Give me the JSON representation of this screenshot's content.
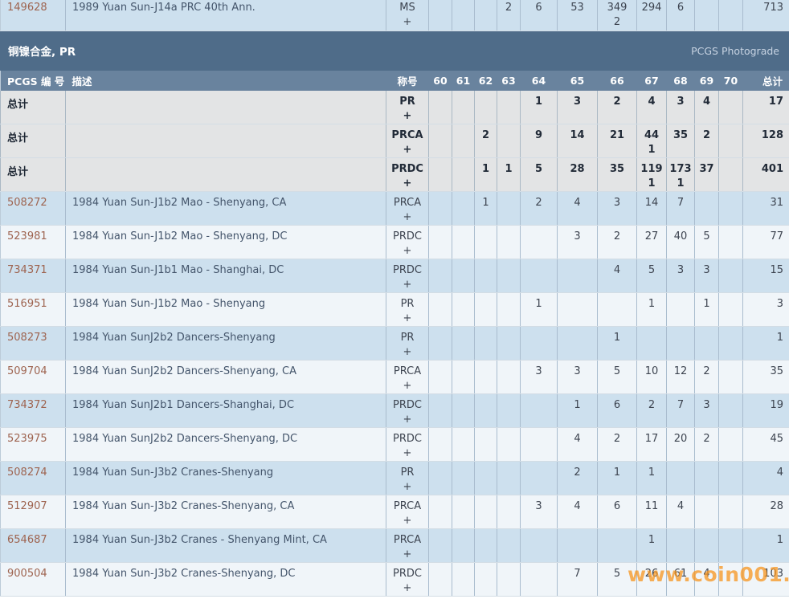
{
  "page": {
    "band_title": "铜镍合金, PR",
    "photograde_link": "PCGS Photograde",
    "watermark": "www.coin001.com"
  },
  "colors": {
    "band_bg": "#4f6c89",
    "header_bg": "#69839e",
    "row_blue": "#cde0ee",
    "row_light": "#f0f5f9",
    "row_gray": "#e3e4e5",
    "pcgs_link": "#9e6450",
    "watermark_orange": "#f7941d"
  },
  "columns": {
    "pcgs": "PCGS 编 号",
    "desc": "描述",
    "designation": "称号",
    "grades": [
      "60",
      "61",
      "62",
      "63",
      "64",
      "65",
      "66",
      "67",
      "68",
      "69",
      "70"
    ],
    "total": "总计"
  },
  "pre_rows": [
    {
      "kind": "data",
      "shade": "blue",
      "top": true,
      "id": "149628",
      "desc": "1989 Yuan Sun-J14a PRC 40th Ann.",
      "designation": "MS",
      "plus": "+",
      "counts": [
        "",
        "",
        "",
        "2",
        "6",
        "53",
        "349",
        "294",
        "6",
        "",
        ""
      ],
      "plus_counts": [
        "",
        "",
        "",
        "",
        "",
        "",
        "2",
        "",
        "",
        "",
        ""
      ],
      "total": "713"
    }
  ],
  "rows": [
    {
      "kind": "total",
      "shade": "gray",
      "label": "总计",
      "desc": "",
      "designation": "PR",
      "plus": "+",
      "counts": [
        "",
        "",
        "",
        "",
        "1",
        "3",
        "2",
        "4",
        "3",
        "4",
        ""
      ],
      "plus_counts": [
        "",
        "",
        "",
        "",
        "",
        "",
        "",
        "",
        "",
        "",
        ""
      ],
      "total": "17"
    },
    {
      "kind": "total",
      "shade": "gray",
      "label": "总计",
      "desc": "",
      "designation": "PRCA",
      "plus": "+",
      "counts": [
        "",
        "",
        "2",
        "",
        "9",
        "14",
        "21",
        "44",
        "35",
        "2",
        ""
      ],
      "plus_counts": [
        "",
        "",
        "",
        "",
        "",
        "",
        "",
        "1",
        "",
        "",
        ""
      ],
      "total": "128"
    },
    {
      "kind": "total",
      "shade": "gray",
      "label": "总计",
      "desc": "",
      "designation": "PRDC",
      "plus": "+",
      "counts": [
        "",
        "",
        "1",
        "1",
        "5",
        "28",
        "35",
        "119",
        "173",
        "37",
        ""
      ],
      "plus_counts": [
        "",
        "",
        "",
        "",
        "",
        "",
        "",
        "1",
        "1",
        "",
        ""
      ],
      "total": "401"
    },
    {
      "kind": "data",
      "shade": "blue",
      "id": "508272",
      "desc": "1984 Yuan Sun-J1b2 Mao - Shenyang, CA",
      "designation": "PRCA",
      "plus": "+",
      "counts": [
        "",
        "",
        "1",
        "",
        "2",
        "4",
        "3",
        "14",
        "7",
        "",
        ""
      ],
      "plus_counts": [
        "",
        "",
        "",
        "",
        "",
        "",
        "",
        "",
        "",
        "",
        ""
      ],
      "total": "31"
    },
    {
      "kind": "data",
      "shade": "light",
      "id": "523981",
      "desc": "1984 Yuan Sun-J1b2 Mao - Shenyang, DC",
      "designation": "PRDC",
      "plus": "+",
      "counts": [
        "",
        "",
        "",
        "",
        "",
        "3",
        "2",
        "27",
        "40",
        "5",
        ""
      ],
      "plus_counts": [
        "",
        "",
        "",
        "",
        "",
        "",
        "",
        "",
        "",
        "",
        ""
      ],
      "total": "77"
    },
    {
      "kind": "data",
      "shade": "blue",
      "id": "734371",
      "desc": "1984 Yuan Sun-J1b1 Mao - Shanghai, DC",
      "designation": "PRDC",
      "plus": "+",
      "counts": [
        "",
        "",
        "",
        "",
        "",
        "",
        "4",
        "5",
        "3",
        "3",
        ""
      ],
      "plus_counts": [
        "",
        "",
        "",
        "",
        "",
        "",
        "",
        "",
        "",
        "",
        ""
      ],
      "total": "15"
    },
    {
      "kind": "data",
      "shade": "light",
      "id": "516951",
      "desc": "1984 Yuan Sun-J1b2 Mao - Shenyang",
      "designation": "PR",
      "plus": "+",
      "counts": [
        "",
        "",
        "",
        "",
        "1",
        "",
        "",
        "1",
        "",
        "1",
        ""
      ],
      "plus_counts": [
        "",
        "",
        "",
        "",
        "",
        "",
        "",
        "",
        "",
        "",
        ""
      ],
      "total": "3"
    },
    {
      "kind": "data",
      "shade": "blue",
      "id": "508273",
      "desc": "1984 Yuan SunJ2b2 Dancers-Shenyang",
      "designation": "PR",
      "plus": "+",
      "counts": [
        "",
        "",
        "",
        "",
        "",
        "",
        "1",
        "",
        "",
        "",
        ""
      ],
      "plus_counts": [
        "",
        "",
        "",
        "",
        "",
        "",
        "",
        "",
        "",
        "",
        ""
      ],
      "total": "1"
    },
    {
      "kind": "data",
      "shade": "light",
      "id": "509704",
      "desc": "1984 Yuan SunJ2b2 Dancers-Shenyang, CA",
      "designation": "PRCA",
      "plus": "+",
      "counts": [
        "",
        "",
        "",
        "",
        "3",
        "3",
        "5",
        "10",
        "12",
        "2",
        ""
      ],
      "plus_counts": [
        "",
        "",
        "",
        "",
        "",
        "",
        "",
        "",
        "",
        "",
        ""
      ],
      "total": "35"
    },
    {
      "kind": "data",
      "shade": "blue",
      "id": "734372",
      "desc": "1984 Yuan SunJ2b1 Dancers-Shanghai, DC",
      "designation": "PRDC",
      "plus": "+",
      "counts": [
        "",
        "",
        "",
        "",
        "",
        "1",
        "6",
        "2",
        "7",
        "3",
        ""
      ],
      "plus_counts": [
        "",
        "",
        "",
        "",
        "",
        "",
        "",
        "",
        "",
        "",
        ""
      ],
      "total": "19"
    },
    {
      "kind": "data",
      "shade": "light",
      "id": "523975",
      "desc": "1984 Yuan SunJ2b2 Dancers-Shenyang, DC",
      "designation": "PRDC",
      "plus": "+",
      "counts": [
        "",
        "",
        "",
        "",
        "",
        "4",
        "2",
        "17",
        "20",
        "2",
        ""
      ],
      "plus_counts": [
        "",
        "",
        "",
        "",
        "",
        "",
        "",
        "",
        "",
        "",
        ""
      ],
      "total": "45"
    },
    {
      "kind": "data",
      "shade": "blue",
      "id": "508274",
      "desc": "1984 Yuan Sun-J3b2 Cranes-Shenyang",
      "designation": "PR",
      "plus": "+",
      "counts": [
        "",
        "",
        "",
        "",
        "",
        "2",
        "1",
        "1",
        "",
        "",
        ""
      ],
      "plus_counts": [
        "",
        "",
        "",
        "",
        "",
        "",
        "",
        "",
        "",
        "",
        ""
      ],
      "total": "4"
    },
    {
      "kind": "data",
      "shade": "light",
      "id": "512907",
      "desc": "1984 Yuan Sun-J3b2 Cranes-Shenyang, CA",
      "designation": "PRCA",
      "plus": "+",
      "counts": [
        "",
        "",
        "",
        "",
        "3",
        "4",
        "6",
        "11",
        "4",
        "",
        ""
      ],
      "plus_counts": [
        "",
        "",
        "",
        "",
        "",
        "",
        "",
        "",
        "",
        "",
        ""
      ],
      "total": "28"
    },
    {
      "kind": "data",
      "shade": "blue",
      "id": "654687",
      "desc": "1984 Yuan Sun-J3b2 Cranes - Shenyang Mint, CA",
      "designation": "PRCA",
      "plus": "+",
      "counts": [
        "",
        "",
        "",
        "",
        "",
        "",
        "",
        "1",
        "",
        "",
        ""
      ],
      "plus_counts": [
        "",
        "",
        "",
        "",
        "",
        "",
        "",
        "",
        "",
        "",
        ""
      ],
      "total": "1"
    },
    {
      "kind": "data",
      "shade": "light",
      "id": "900504",
      "desc": "1984 Yuan Sun-J3b2 Cranes-Shenyang, DC",
      "designation": "PRDC",
      "plus": "+",
      "counts": [
        "",
        "",
        "",
        "",
        "",
        "7",
        "5",
        "26",
        "61",
        "4",
        ""
      ],
      "plus_counts": [
        "",
        "",
        "",
        "",
        "",
        "",
        "",
        "",
        "",
        "",
        ""
      ],
      "total": "103"
    }
  ]
}
